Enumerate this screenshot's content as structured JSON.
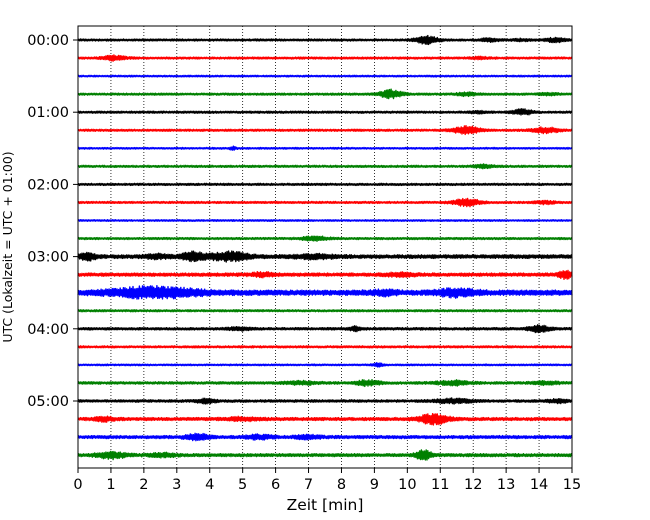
{
  "chart_data": {
    "type": "line",
    "subtype": "helicorder-seismogram",
    "title": "",
    "xlabel": "Zeit  [min]",
    "ylabel": "UTC (Lokalzeit = UTC + 01:00)",
    "xlim": [
      0,
      15
    ],
    "x_ticks": [
      0,
      1,
      2,
      3,
      4,
      5,
      6,
      7,
      8,
      9,
      10,
      11,
      12,
      13,
      14,
      15
    ],
    "x_tick_labels": [
      "0",
      "1",
      "2",
      "3",
      "4",
      "5",
      "6",
      "7",
      "8",
      "9",
      "10",
      "11",
      "12",
      "13",
      "14",
      "15"
    ],
    "vertical_grid": "dotted",
    "trace_interval_minutes": 15,
    "y_tick_labels": [
      "00:00",
      "01:00",
      "02:00",
      "03:00",
      "04:00",
      "05:00"
    ],
    "trace_color_cycle": [
      "#000000",
      "#ff0000",
      "#0000ff",
      "#008000"
    ],
    "series": [
      {
        "start": "00:00",
        "color": "#000000",
        "base": 1.0,
        "bursts": [
          [
            10.6,
            3.5,
            0.35
          ],
          [
            12.5,
            1.4,
            0.3
          ],
          [
            14.5,
            1.8,
            0.3
          ],
          [
            13.5,
            0.8,
            0.3
          ]
        ]
      },
      {
        "start": "00:15",
        "color": "#ff0000",
        "base": 1.0,
        "bursts": [
          [
            1.1,
            2.2,
            0.35
          ],
          [
            12.2,
            0.8,
            0.3
          ]
        ]
      },
      {
        "start": "00:30",
        "color": "#0000ff",
        "base": 0.8,
        "bursts": []
      },
      {
        "start": "00:45",
        "color": "#008000",
        "base": 1.0,
        "bursts": [
          [
            9.5,
            4.0,
            0.35
          ],
          [
            11.8,
            1.4,
            0.3
          ],
          [
            14.3,
            0.8,
            0.3
          ]
        ]
      },
      {
        "start": "01:00",
        "color": "#000000",
        "base": 1.0,
        "bursts": [
          [
            13.5,
            2.6,
            0.3
          ],
          [
            12.2,
            0.8,
            0.3
          ]
        ]
      },
      {
        "start": "01:15",
        "color": "#ff0000",
        "base": 1.0,
        "bursts": [
          [
            11.8,
            3.6,
            0.4
          ],
          [
            14.2,
            2.6,
            0.4
          ]
        ]
      },
      {
        "start": "01:30",
        "color": "#0000ff",
        "base": 0.8,
        "bursts": [
          [
            4.7,
            1.4,
            0.1
          ]
        ]
      },
      {
        "start": "01:45",
        "color": "#008000",
        "base": 1.0,
        "bursts": [
          [
            12.3,
            1.4,
            0.3
          ]
        ]
      },
      {
        "start": "02:00",
        "color": "#000000",
        "base": 1.0,
        "bursts": []
      },
      {
        "start": "02:15",
        "color": "#ff0000",
        "base": 1.0,
        "bursts": [
          [
            11.8,
            3.6,
            0.4
          ],
          [
            14.2,
            1.4,
            0.3
          ]
        ]
      },
      {
        "start": "02:30",
        "color": "#0000ff",
        "base": 0.8,
        "bursts": []
      },
      {
        "start": "02:45",
        "color": "#008000",
        "base": 1.0,
        "bursts": [
          [
            7.2,
            2.0,
            0.4
          ]
        ]
      },
      {
        "start": "03:00",
        "color": "#000000",
        "base": 1.8,
        "bursts": [
          [
            0.3,
            2.8,
            0.25
          ],
          [
            3.5,
            3.6,
            0.35
          ],
          [
            4.6,
            3.8,
            0.6
          ],
          [
            2.4,
            1.6,
            0.4
          ],
          [
            7.2,
            1.6,
            0.6
          ]
        ]
      },
      {
        "start": "03:15",
        "color": "#ff0000",
        "base": 1.6,
        "bursts": [
          [
            14.8,
            3.6,
            0.2
          ],
          [
            5.6,
            1.6,
            0.4
          ],
          [
            9.8,
            1.4,
            0.5
          ]
        ]
      },
      {
        "start": "03:30",
        "color": "#0000ff",
        "base": 2.6,
        "bursts": [
          [
            2.3,
            4.5,
            1.3
          ],
          [
            11.5,
            3.0,
            0.6
          ],
          [
            9.3,
            1.6,
            0.4
          ]
        ]
      },
      {
        "start": "03:45",
        "color": "#008000",
        "base": 1.0,
        "bursts": []
      },
      {
        "start": "04:00",
        "color": "#000000",
        "base": 1.2,
        "bursts": [
          [
            8.4,
            2.0,
            0.15
          ],
          [
            14.0,
            3.2,
            0.3
          ],
          [
            4.9,
            1.4,
            0.3
          ]
        ]
      },
      {
        "start": "04:15",
        "color": "#ff0000",
        "base": 1.0,
        "bursts": []
      },
      {
        "start": "04:30",
        "color": "#0000ff",
        "base": 0.8,
        "bursts": [
          [
            9.1,
            1.6,
            0.15
          ]
        ]
      },
      {
        "start": "04:45",
        "color": "#008000",
        "base": 1.2,
        "bursts": [
          [
            8.8,
            2.4,
            0.35
          ],
          [
            11.4,
            2.0,
            0.5
          ],
          [
            6.8,
            1.4,
            0.5
          ],
          [
            14.2,
            1.4,
            0.4
          ]
        ]
      },
      {
        "start": "05:00",
        "color": "#000000",
        "base": 1.2,
        "bursts": [
          [
            3.9,
            1.8,
            0.3
          ],
          [
            11.4,
            1.8,
            0.6
          ],
          [
            14.6,
            1.6,
            0.3
          ]
        ]
      },
      {
        "start": "05:15",
        "color": "#ff0000",
        "base": 1.5,
        "bursts": [
          [
            10.8,
            4.6,
            0.45
          ],
          [
            0.8,
            1.8,
            0.3
          ],
          [
            5.0,
            1.4,
            0.5
          ]
        ]
      },
      {
        "start": "05:30",
        "color": "#0000ff",
        "base": 1.5,
        "bursts": [
          [
            3.6,
            2.8,
            0.35
          ],
          [
            5.5,
            1.8,
            0.4
          ],
          [
            7.0,
            1.4,
            0.4
          ]
        ]
      },
      {
        "start": "05:45",
        "color": "#008000",
        "base": 1.5,
        "bursts": [
          [
            1.0,
            3.0,
            0.45
          ],
          [
            10.5,
            4.0,
            0.25
          ],
          [
            2.6,
            1.4,
            0.4
          ]
        ]
      }
    ]
  }
}
